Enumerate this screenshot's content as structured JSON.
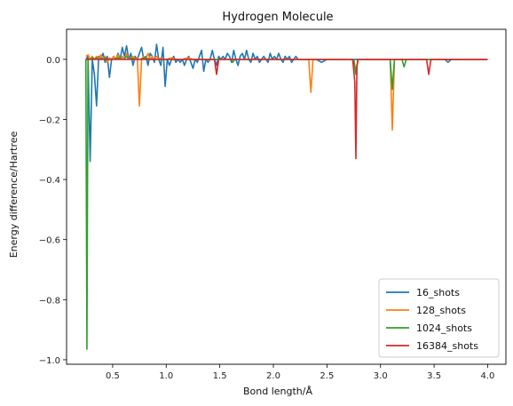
{
  "chart_data": {
    "type": "line",
    "title": "Hydrogen Molecule",
    "xlabel": "Bond length/Å",
    "ylabel": "Energy difference/Hartree",
    "xlim": [
      0.07,
      4.17
    ],
    "ylim": [
      -1.015,
      0.1
    ],
    "xticks": [
      0.5,
      1.0,
      1.5,
      2.0,
      2.5,
      3.0,
      3.5,
      4.0
    ],
    "xtick_labels": [
      "0.5",
      "1.0",
      "1.5",
      "2.0",
      "2.5",
      "3.0",
      "3.5",
      "4.0"
    ],
    "yticks": [
      -1.0,
      -0.8,
      -0.6,
      -0.4,
      -0.2,
      0.0
    ],
    "ytick_labels": [
      "−1.0",
      "−0.8",
      "−0.6",
      "−0.4",
      "−0.2",
      "0.0"
    ],
    "grid": false,
    "legend_position": "bottom-right",
    "series": [
      {
        "name": "16_shots",
        "color": "#1f77b4",
        "points": [
          [
            0.25,
            0.0
          ],
          [
            0.27,
            0.01
          ],
          [
            0.29,
            -0.34
          ],
          [
            0.31,
            0.0
          ],
          [
            0.33,
            -0.05
          ],
          [
            0.35,
            -0.155
          ],
          [
            0.37,
            0.01
          ],
          [
            0.39,
            0.0
          ],
          [
            0.41,
            0.02
          ],
          [
            0.43,
            -0.01
          ],
          [
            0.45,
            0.01
          ],
          [
            0.47,
            -0.06
          ],
          [
            0.49,
            0.0
          ],
          [
            0.51,
            0.01
          ],
          [
            0.53,
            0.0
          ],
          [
            0.55,
            0.02
          ],
          [
            0.57,
            0.0
          ],
          [
            0.59,
            0.04
          ],
          [
            0.61,
            0.01
          ],
          [
            0.63,
            0.045
          ],
          [
            0.65,
            0.0
          ],
          [
            0.67,
            0.02
          ],
          [
            0.69,
            -0.02
          ],
          [
            0.71,
            0.01
          ],
          [
            0.73,
            0.0
          ],
          [
            0.75,
            0.02
          ],
          [
            0.77,
            0.04
          ],
          [
            0.79,
            0.0
          ],
          [
            0.81,
            0.01
          ],
          [
            0.83,
            -0.02
          ],
          [
            0.85,
            0.02
          ],
          [
            0.87,
            0.01
          ],
          [
            0.89,
            -0.01
          ],
          [
            0.91,
            0.05
          ],
          [
            0.93,
            0.0
          ],
          [
            0.95,
            -0.02
          ],
          [
            0.97,
            0.04
          ],
          [
            0.99,
            -0.09
          ],
          [
            1.01,
            0.0
          ],
          [
            1.03,
            -0.02
          ],
          [
            1.05,
            0.0
          ],
          [
            1.07,
            0.01
          ],
          [
            1.09,
            -0.01
          ],
          [
            1.11,
            0.0
          ],
          [
            1.13,
            -0.01
          ],
          [
            1.15,
            0.0
          ],
          [
            1.17,
            -0.02
          ],
          [
            1.19,
            0.0
          ],
          [
            1.21,
            0.01
          ],
          [
            1.23,
            -0.01
          ],
          [
            1.25,
            -0.03
          ],
          [
            1.27,
            0.0
          ],
          [
            1.29,
            -0.01
          ],
          [
            1.31,
            0.01
          ],
          [
            1.33,
            0.03
          ],
          [
            1.35,
            -0.04
          ],
          [
            1.37,
            0.0
          ],
          [
            1.39,
            -0.01
          ],
          [
            1.41,
            0.0
          ],
          [
            1.43,
            0.03
          ],
          [
            1.45,
            0.0
          ],
          [
            1.47,
            -0.02
          ],
          [
            1.49,
            0.01
          ],
          [
            1.51,
            0.0
          ],
          [
            1.53,
            0.01
          ],
          [
            1.55,
            0.0
          ],
          [
            1.57,
            0.02
          ],
          [
            1.59,
            0.01
          ],
          [
            1.61,
            -0.01
          ],
          [
            1.63,
            0.03
          ],
          [
            1.65,
            0.0
          ],
          [
            1.67,
            -0.02
          ],
          [
            1.69,
            0.01
          ],
          [
            1.71,
            0.02
          ],
          [
            1.73,
            0.0
          ],
          [
            1.75,
            0.03
          ],
          [
            1.77,
            0.0
          ],
          [
            1.79,
            -0.01
          ],
          [
            1.81,
            0.02
          ],
          [
            1.83,
            0.0
          ],
          [
            1.85,
            0.01
          ],
          [
            1.87,
            -0.01
          ],
          [
            1.89,
            0.0
          ],
          [
            1.91,
            0.01
          ],
          [
            1.93,
            0.0
          ],
          [
            1.95,
            -0.01
          ],
          [
            1.97,
            0.02
          ],
          [
            1.99,
            0.0
          ],
          [
            2.01,
            0.01
          ],
          [
            2.03,
            0.0
          ],
          [
            2.05,
            0.02
          ],
          [
            2.07,
            0.0
          ],
          [
            2.09,
            -0.01
          ],
          [
            2.11,
            0.01
          ],
          [
            2.13,
            0.0
          ],
          [
            2.15,
            0.01
          ],
          [
            2.17,
            -0.01
          ],
          [
            2.19,
            0.0
          ],
          [
            2.21,
            0.01
          ],
          [
            2.23,
            0.0
          ],
          [
            2.25,
            0.0
          ],
          [
            2.3,
            0.0
          ],
          [
            2.35,
            0.0
          ],
          [
            2.4,
            0.0
          ],
          [
            2.45,
            -0.01
          ],
          [
            2.5,
            0.0
          ],
          [
            2.55,
            0.0
          ],
          [
            2.6,
            0.0
          ],
          [
            2.65,
            0.0
          ],
          [
            2.7,
            0.0
          ],
          [
            2.75,
            0.0
          ],
          [
            2.8,
            0.0
          ],
          [
            2.9,
            0.0
          ],
          [
            3.0,
            0.0
          ],
          [
            3.1,
            0.0
          ],
          [
            3.2,
            0.0
          ],
          [
            3.3,
            0.0
          ],
          [
            3.4,
            0.0
          ],
          [
            3.5,
            0.0
          ],
          [
            3.6,
            0.0
          ],
          [
            3.63,
            -0.01
          ],
          [
            3.66,
            0.0
          ],
          [
            3.8,
            0.0
          ],
          [
            4.0,
            0.0
          ]
        ]
      },
      {
        "name": "128_shots",
        "color": "#ff7f0e",
        "points": [
          [
            0.25,
            0.01
          ],
          [
            0.27,
            0.015
          ],
          [
            0.29,
            0.0
          ],
          [
            0.31,
            0.01
          ],
          [
            0.33,
            0.0
          ],
          [
            0.35,
            0.01
          ],
          [
            0.37,
            0.0
          ],
          [
            0.39,
            0.015
          ],
          [
            0.41,
            0.0
          ],
          [
            0.43,
            0.01
          ],
          [
            0.45,
            -0.01
          ],
          [
            0.47,
            0.005
          ],
          [
            0.49,
            0.0
          ],
          [
            0.51,
            0.01
          ],
          [
            0.53,
            0.0
          ],
          [
            0.55,
            0.015
          ],
          [
            0.57,
            0.0
          ],
          [
            0.59,
            0.01
          ],
          [
            0.61,
            0.0
          ],
          [
            0.63,
            0.02
          ],
          [
            0.65,
            0.0
          ],
          [
            0.67,
            0.005
          ],
          [
            0.69,
            0.01
          ],
          [
            0.71,
            0.0
          ],
          [
            0.73,
            0.005
          ],
          [
            0.75,
            -0.155
          ],
          [
            0.77,
            0.0
          ],
          [
            0.79,
            0.01
          ],
          [
            0.81,
            0.0
          ],
          [
            0.83,
            0.02
          ],
          [
            0.85,
            0.0
          ],
          [
            0.87,
            0.01
          ],
          [
            0.89,
            0.0
          ],
          [
            0.91,
            0.01
          ],
          [
            0.93,
            0.0
          ],
          [
            0.95,
            0.005
          ],
          [
            0.97,
            0.0
          ],
          [
            1.0,
            0.0
          ],
          [
            1.05,
            0.005
          ],
          [
            1.1,
            0.0
          ],
          [
            1.15,
            0.0
          ],
          [
            1.2,
            0.005
          ],
          [
            1.25,
            0.0
          ],
          [
            1.3,
            0.0
          ],
          [
            1.35,
            0.0
          ],
          [
            1.4,
            0.0
          ],
          [
            1.45,
            0.0
          ],
          [
            1.5,
            0.0
          ],
          [
            1.55,
            0.0
          ],
          [
            1.6,
            0.0
          ],
          [
            1.65,
            0.0
          ],
          [
            1.7,
            0.0
          ],
          [
            1.75,
            0.0
          ],
          [
            1.8,
            0.0
          ],
          [
            1.85,
            0.0
          ],
          [
            1.9,
            0.0
          ],
          [
            1.95,
            0.0
          ],
          [
            2.0,
            0.0
          ],
          [
            2.1,
            0.0
          ],
          [
            2.2,
            0.0
          ],
          [
            2.3,
            0.0
          ],
          [
            2.33,
            0.0
          ],
          [
            2.35,
            -0.11
          ],
          [
            2.37,
            0.0
          ],
          [
            2.5,
            0.0
          ],
          [
            2.6,
            0.0
          ],
          [
            2.7,
            0.0
          ],
          [
            2.75,
            0.0
          ],
          [
            2.77,
            -0.04
          ],
          [
            2.79,
            0.0
          ],
          [
            2.9,
            0.0
          ],
          [
            3.0,
            0.0
          ],
          [
            3.09,
            0.0
          ],
          [
            3.11,
            -0.235
          ],
          [
            3.13,
            0.0
          ],
          [
            3.3,
            0.0
          ],
          [
            3.5,
            0.0
          ],
          [
            3.7,
            0.0
          ],
          [
            4.0,
            0.0
          ]
        ]
      },
      {
        "name": "1024_shots",
        "color": "#2ca02c",
        "points": [
          [
            0.25,
            0.0
          ],
          [
            0.26,
            -0.965
          ],
          [
            0.27,
            0.0
          ],
          [
            0.29,
            0.0
          ],
          [
            0.31,
            0.005
          ],
          [
            0.33,
            0.0
          ],
          [
            0.35,
            0.005
          ],
          [
            0.37,
            0.0
          ],
          [
            0.4,
            0.0
          ],
          [
            0.43,
            0.005
          ],
          [
            0.45,
            0.0
          ],
          [
            0.5,
            0.0
          ],
          [
            0.55,
            0.005
          ],
          [
            0.6,
            0.0
          ],
          [
            0.63,
            0.01
          ],
          [
            0.65,
            0.0
          ],
          [
            0.68,
            0.005
          ],
          [
            0.7,
            0.0
          ],
          [
            0.75,
            0.0
          ],
          [
            0.8,
            0.005
          ],
          [
            0.85,
            0.0
          ],
          [
            0.9,
            0.0
          ],
          [
            0.95,
            0.0
          ],
          [
            1.0,
            0.0
          ],
          [
            1.1,
            0.0
          ],
          [
            1.2,
            0.0
          ],
          [
            1.3,
            0.0
          ],
          [
            1.4,
            0.0
          ],
          [
            1.5,
            0.0
          ],
          [
            1.6,
            0.0
          ],
          [
            1.6,
            0.0
          ],
          [
            1.62,
            -0.01
          ],
          [
            1.64,
            0.0
          ],
          [
            1.7,
            0.0
          ],
          [
            1.8,
            0.0
          ],
          [
            1.9,
            0.0
          ],
          [
            2.0,
            0.0
          ],
          [
            2.2,
            0.0
          ],
          [
            2.4,
            0.0
          ],
          [
            2.6,
            0.0
          ],
          [
            2.75,
            0.0
          ],
          [
            2.77,
            -0.05
          ],
          [
            2.79,
            0.0
          ],
          [
            3.0,
            0.0
          ],
          [
            3.09,
            0.0
          ],
          [
            3.11,
            -0.1
          ],
          [
            3.13,
            0.0
          ],
          [
            3.2,
            0.0
          ],
          [
            3.22,
            -0.025
          ],
          [
            3.24,
            0.0
          ],
          [
            3.4,
            0.0
          ],
          [
            3.6,
            0.0
          ],
          [
            3.8,
            0.0
          ],
          [
            4.0,
            0.0
          ]
        ]
      },
      {
        "name": "16384_shots",
        "color": "#d62728",
        "points": [
          [
            0.25,
            0.0
          ],
          [
            0.3,
            0.0
          ],
          [
            0.4,
            0.0
          ],
          [
            0.5,
            0.0
          ],
          [
            0.6,
            0.0
          ],
          [
            0.7,
            0.0
          ],
          [
            0.8,
            0.0
          ],
          [
            0.9,
            0.0
          ],
          [
            1.0,
            0.0
          ],
          [
            1.1,
            0.0
          ],
          [
            1.2,
            0.0
          ],
          [
            1.3,
            0.0
          ],
          [
            1.4,
            0.0
          ],
          [
            1.45,
            0.0
          ],
          [
            1.47,
            -0.05
          ],
          [
            1.49,
            0.0
          ],
          [
            1.6,
            0.0
          ],
          [
            1.7,
            0.0
          ],
          [
            1.8,
            0.0
          ],
          [
            1.9,
            0.0
          ],
          [
            2.0,
            0.0
          ],
          [
            2.2,
            0.0
          ],
          [
            2.4,
            0.0
          ],
          [
            2.6,
            0.0
          ],
          [
            2.74,
            0.0
          ],
          [
            2.76,
            -0.075
          ],
          [
            2.77,
            -0.33
          ],
          [
            2.78,
            -0.02
          ],
          [
            2.79,
            0.0
          ],
          [
            2.9,
            0.0
          ],
          [
            3.0,
            0.0
          ],
          [
            3.2,
            0.0
          ],
          [
            3.4,
            0.0
          ],
          [
            3.43,
            0.0
          ],
          [
            3.45,
            -0.05
          ],
          [
            3.47,
            0.0
          ],
          [
            3.6,
            0.0
          ],
          [
            3.8,
            0.0
          ],
          [
            4.0,
            0.0
          ]
        ]
      }
    ]
  }
}
